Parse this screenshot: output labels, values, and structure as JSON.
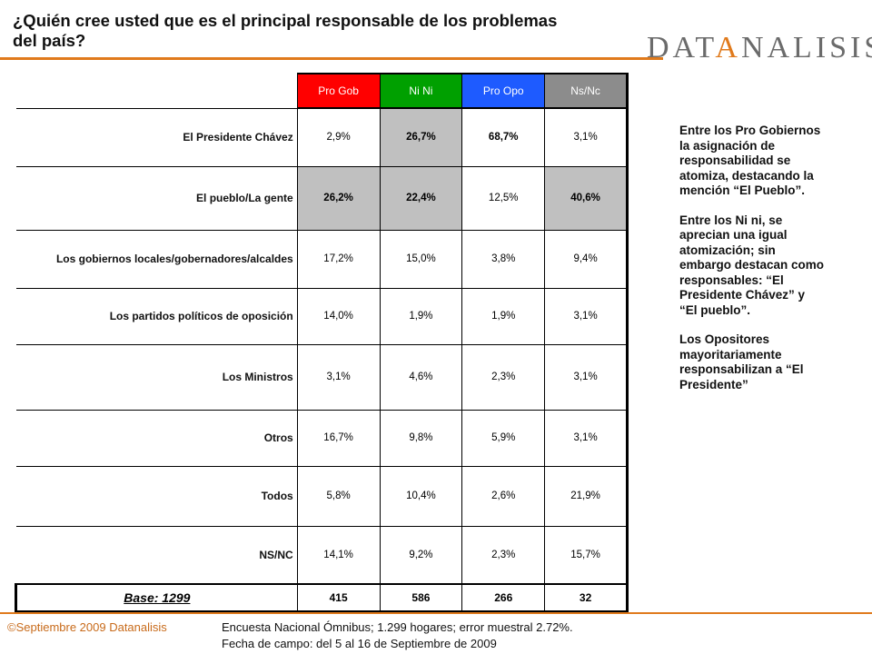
{
  "header": {
    "title": "¿Quién cree usted que es el principal responsable de los problemas del país?",
    "logo": "DATANALISIS"
  },
  "colors": {
    "accent": "#e07a1c",
    "pro_gob": "#ff0000",
    "ni_ni": "#00a000",
    "pro_opo": "#1e5bff",
    "ns_nc": "#8c8c8c",
    "highlight": "#c0c0c0"
  },
  "table": {
    "columns": [
      "Pro Gob",
      "Ni Ni",
      "Pro Opo",
      "Ns/Nc"
    ],
    "rows": [
      {
        "label": "El Presidente Chávez",
        "values": [
          "2,9%",
          "26,7%",
          "68,7%",
          "3,1%"
        ]
      },
      {
        "label": "El pueblo/La gente",
        "values": [
          "26,2%",
          "22,4%",
          "12,5%",
          "40,6%"
        ]
      },
      {
        "label": "Los gobiernos locales/gobernadores/alcaldes",
        "values": [
          "17,2%",
          "15,0%",
          "3,8%",
          "9,4%"
        ]
      },
      {
        "label": "Los partidos políticos de oposición",
        "values": [
          "14,0%",
          "1,9%",
          "1,9%",
          "3,1%"
        ]
      },
      {
        "label": "Los Ministros",
        "values": [
          "3,1%",
          "4,6%",
          "2,3%",
          "3,1%"
        ]
      },
      {
        "label": "Otros",
        "values": [
          "16,7%",
          "9,8%",
          "5,9%",
          "3,1%"
        ]
      },
      {
        "label": "Todos",
        "values": [
          "5,8%",
          "10,4%",
          "2,6%",
          "21,9%"
        ]
      },
      {
        "label": "NS/NC",
        "values": [
          "14,1%",
          "9,2%",
          "2,3%",
          "15,7%"
        ]
      }
    ],
    "base": {
      "label": "Base: 1299",
      "values": [
        "415",
        "586",
        "266",
        "32"
      ]
    }
  },
  "notes": [
    "Entre los Pro Gobiernos la asignación de responsabilidad se atomiza, destacando la mención “El Pueblo”.",
    "Entre los Ni ni, se aprecian una igual atomización; sin embargo destacan como responsables: “El Presidente Chávez” y “El pueblo”.",
    "Los Opositores mayoritariamente responsabilizan a “El Presidente”"
  ],
  "footer": {
    "copyright": "©Septiembre 2009 Datanalisis",
    "source_line1": "Encuesta Nacional Ómnibus; 1.299 hogares; error muestral 2.72%.",
    "source_line2": "Fecha de campo: del 5 al 16 de Septiembre de 2009"
  }
}
